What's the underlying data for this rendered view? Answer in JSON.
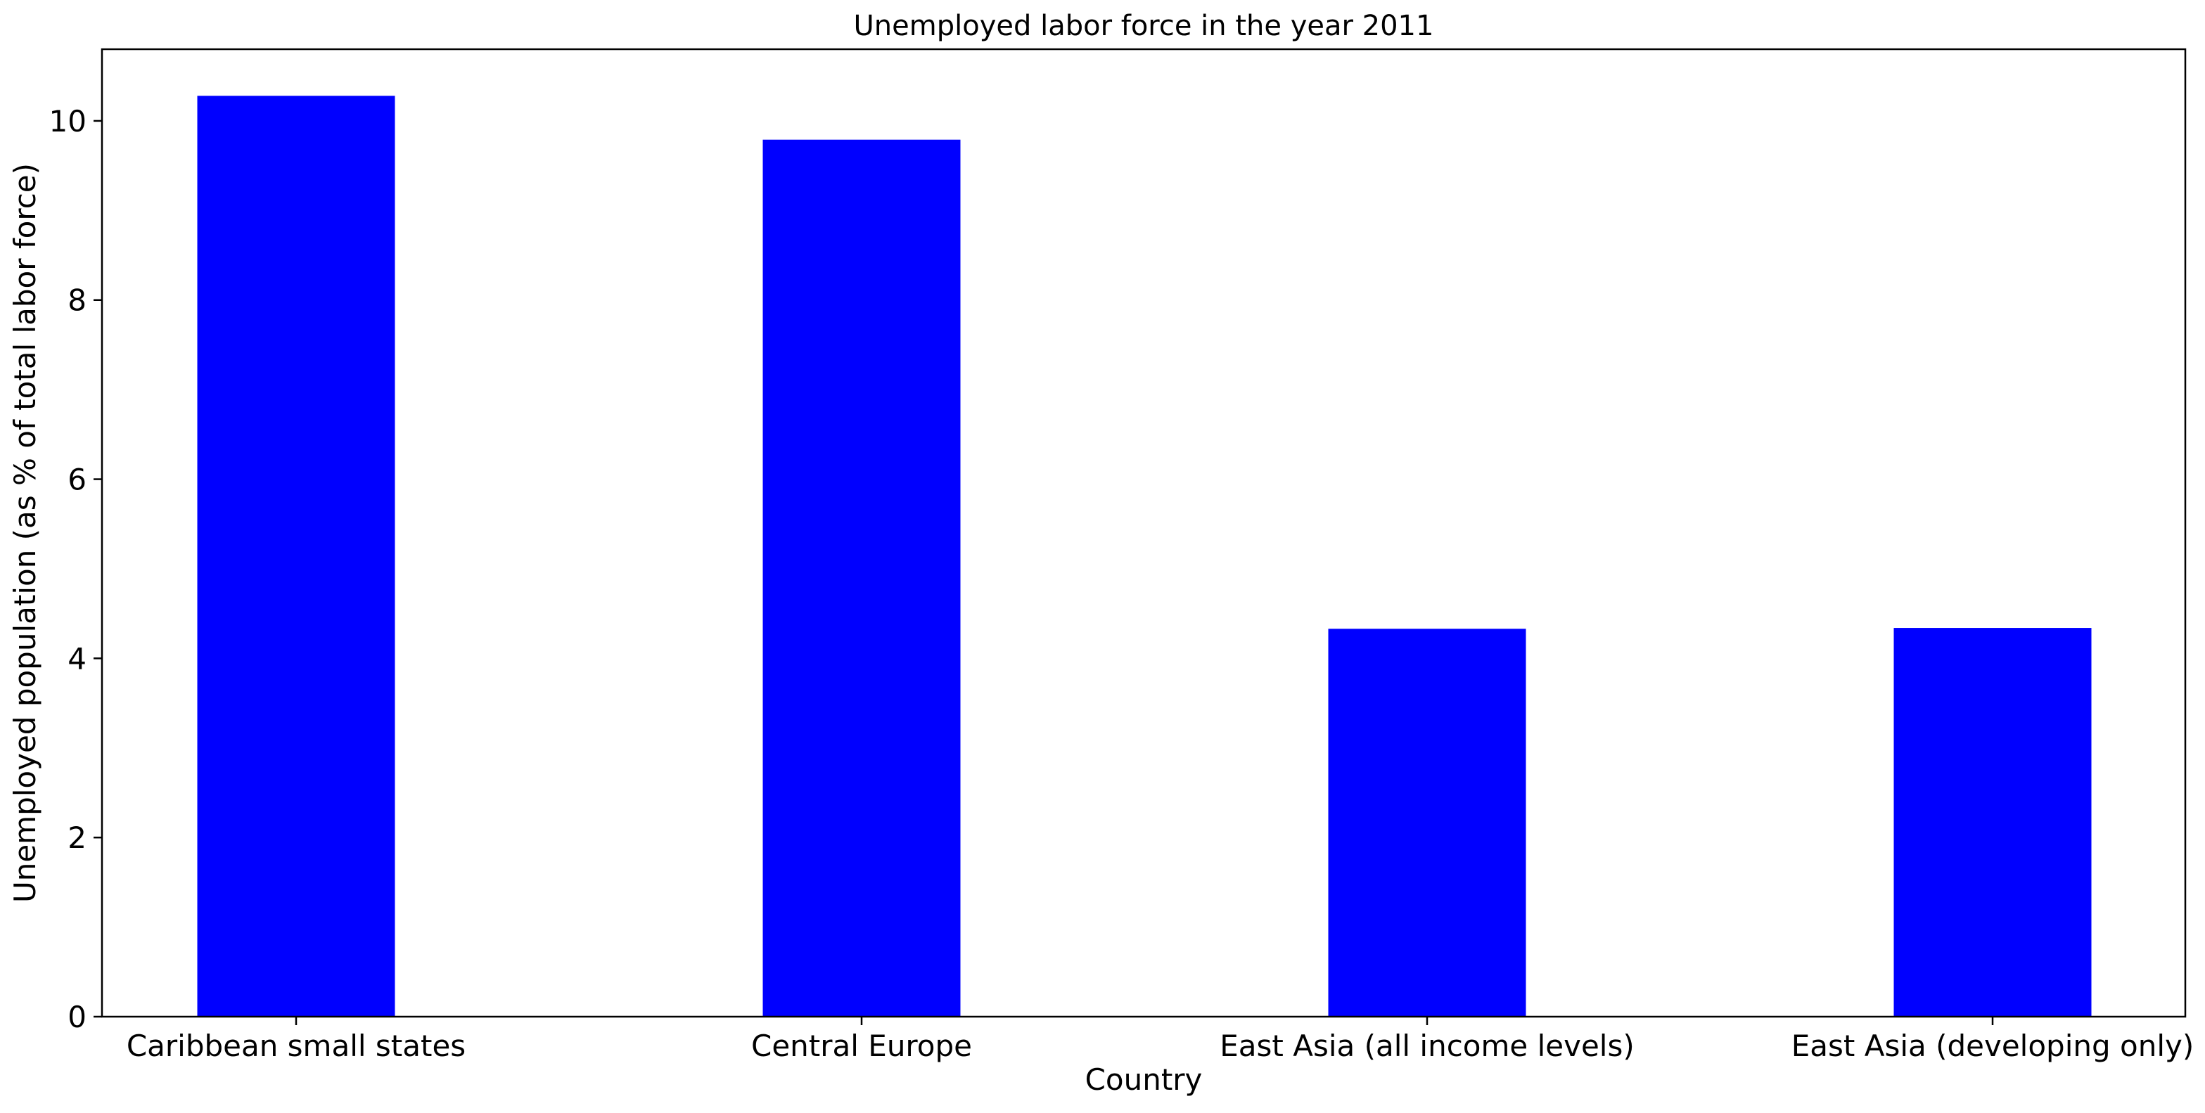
{
  "chart_data": {
    "type": "bar",
    "title": "Unemployed labor force in the year 2011",
    "xlabel": "Country",
    "ylabel": "Unemployed population (as % of total labor force)",
    "categories": [
      "Caribbean small states",
      "Central Europe",
      "East Asia (all income levels)",
      "East Asia (developing only)"
    ],
    "values": [
      10.28,
      9.79,
      4.33,
      4.34
    ],
    "ylim": [
      0,
      10.8
    ],
    "yticks": [
      0,
      2,
      4,
      6,
      8,
      10
    ],
    "ytick_labels": [
      "0",
      "2",
      "4",
      "6",
      "8",
      "10"
    ],
    "bar_color": "#0000ff",
    "grid": false,
    "legend": "none"
  }
}
